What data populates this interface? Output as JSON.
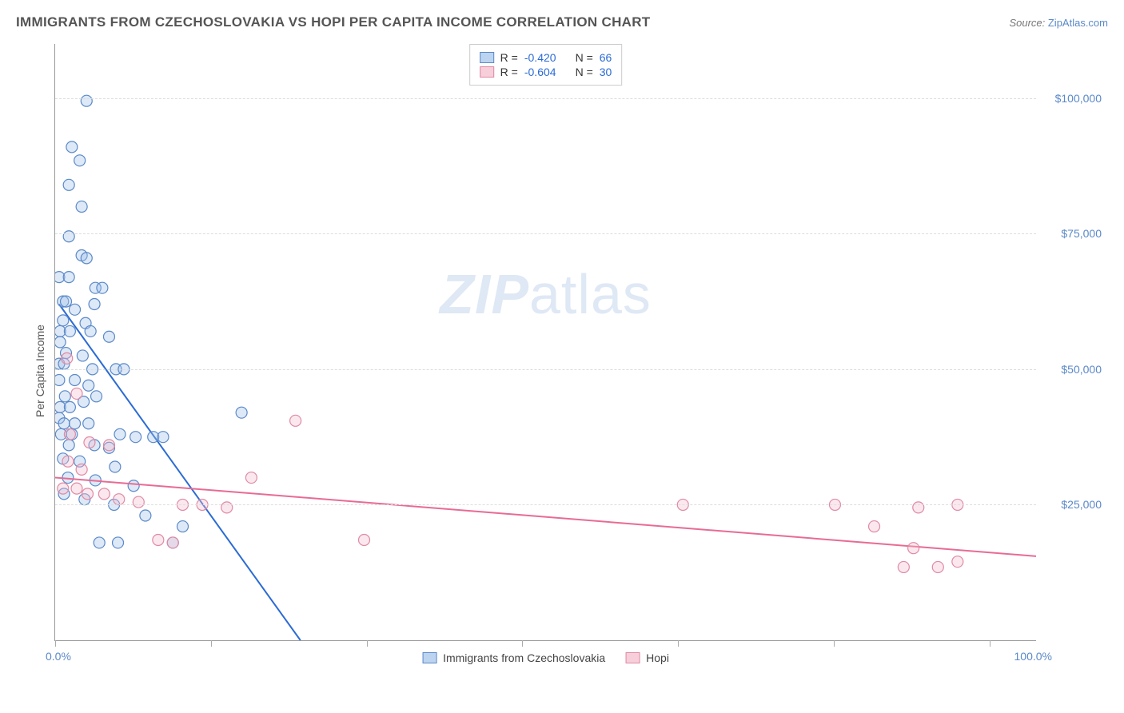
{
  "header": {
    "title": "IMMIGRANTS FROM CZECHOSLOVAKIA VS HOPI PER CAPITA INCOME CORRELATION CHART",
    "source_prefix": "Source: ",
    "source_link": "ZipAtlas.com"
  },
  "watermark": {
    "zip": "ZIP",
    "atlas": "atlas"
  },
  "chart": {
    "type": "scatter",
    "background_color": "#ffffff",
    "grid_color": "#dddddd",
    "axis_color": "#999999",
    "y_axis_title": "Per Capita Income",
    "x_min_label": "0.0%",
    "x_max_label": "100.0%",
    "xlim": [
      0,
      100
    ],
    "ylim": [
      0,
      110000
    ],
    "y_ticks": [
      {
        "value": 25000,
        "label": "$25,000"
      },
      {
        "value": 50000,
        "label": "$50,000"
      },
      {
        "value": 75000,
        "label": "$75,000"
      },
      {
        "value": 100000,
        "label": "$100,000"
      }
    ],
    "x_tick_positions_pct": [
      0,
      15.9,
      31.8,
      47.6,
      63.5,
      79.4,
      95.3
    ],
    "marker_radius": 7,
    "marker_stroke_width": 1.2,
    "marker_fill_opacity": 0.35,
    "trend_line_width": 2,
    "series": [
      {
        "name": "Immigrants from Czechoslovakia",
        "color_stroke": "#5b89c9",
        "color_fill": "#9ec0e8",
        "legend_swatch_fill": "#bcd4ef",
        "legend_swatch_border": "#5b89c9",
        "trend_line_color": "#2b6bd4",
        "R": "-0.420",
        "N": "66",
        "trend_line": {
          "x1": 0.4,
          "y1": 62000,
          "x2": 25,
          "y2": 0
        },
        "trend_extend": {
          "x1": 21,
          "y1": 10000,
          "x2": 27,
          "y2": -5000,
          "dashed": true
        },
        "points": [
          [
            3.2,
            99500
          ],
          [
            1.7,
            91000
          ],
          [
            2.5,
            88500
          ],
          [
            1.4,
            84000
          ],
          [
            2.7,
            80000
          ],
          [
            1.4,
            74500
          ],
          [
            2.7,
            71000
          ],
          [
            3.2,
            70500
          ],
          [
            0.4,
            67000
          ],
          [
            1.4,
            67000
          ],
          [
            4.1,
            65000
          ],
          [
            4.8,
            65000
          ],
          [
            0.8,
            62500
          ],
          [
            1.1,
            62500
          ],
          [
            4.0,
            62000
          ],
          [
            2.0,
            61000
          ],
          [
            0.8,
            59000
          ],
          [
            3.1,
            58500
          ],
          [
            0.5,
            57000
          ],
          [
            1.5,
            57000
          ],
          [
            3.6,
            57000
          ],
          [
            0.5,
            55000
          ],
          [
            5.5,
            56000
          ],
          [
            1.1,
            53000
          ],
          [
            2.8,
            52500
          ],
          [
            0.4,
            51000
          ],
          [
            0.9,
            51000
          ],
          [
            3.8,
            50000
          ],
          [
            6.2,
            50000
          ],
          [
            7.0,
            50000
          ],
          [
            0.4,
            48000
          ],
          [
            2.0,
            48000
          ],
          [
            3.4,
            47000
          ],
          [
            1.0,
            45000
          ],
          [
            4.2,
            45000
          ],
          [
            0.5,
            43000
          ],
          [
            1.5,
            43000
          ],
          [
            2.9,
            44000
          ],
          [
            19.0,
            42000
          ],
          [
            0.4,
            41000
          ],
          [
            0.9,
            40000
          ],
          [
            2.0,
            40000
          ],
          [
            3.4,
            40000
          ],
          [
            0.6,
            38000
          ],
          [
            1.7,
            38000
          ],
          [
            6.6,
            38000
          ],
          [
            8.2,
            37500
          ],
          [
            10.0,
            37500
          ],
          [
            11.0,
            37500
          ],
          [
            1.4,
            36000
          ],
          [
            4.0,
            36000
          ],
          [
            5.5,
            35500
          ],
          [
            0.8,
            33500
          ],
          [
            2.5,
            33000
          ],
          [
            6.1,
            32000
          ],
          [
            1.3,
            30000
          ],
          [
            4.1,
            29500
          ],
          [
            8.0,
            28500
          ],
          [
            0.9,
            27000
          ],
          [
            3.0,
            26000
          ],
          [
            6.0,
            25000
          ],
          [
            9.2,
            23000
          ],
          [
            13.0,
            21000
          ],
          [
            4.5,
            18000
          ],
          [
            6.4,
            18000
          ],
          [
            12.0,
            18000
          ]
        ]
      },
      {
        "name": "Hopi",
        "color_stroke": "#e08aa4",
        "color_fill": "#f3bccd",
        "legend_swatch_fill": "#f6cfdb",
        "legend_swatch_border": "#e08aa4",
        "trend_line_color": "#e86b93",
        "R": "-0.604",
        "N": "30",
        "trend_line": {
          "x1": 0,
          "y1": 30000,
          "x2": 100,
          "y2": 15500
        },
        "points": [
          [
            1.2,
            52000
          ],
          [
            2.2,
            45500
          ],
          [
            24.5,
            40500
          ],
          [
            1.5,
            38000
          ],
          [
            3.5,
            36500
          ],
          [
            5.5,
            36000
          ],
          [
            1.3,
            33000
          ],
          [
            2.7,
            31500
          ],
          [
            20.0,
            30000
          ],
          [
            0.8,
            28000
          ],
          [
            2.2,
            28000
          ],
          [
            3.3,
            27000
          ],
          [
            5.0,
            27000
          ],
          [
            6.5,
            26000
          ],
          [
            8.5,
            25500
          ],
          [
            13.0,
            25000
          ],
          [
            15.0,
            25000
          ],
          [
            17.5,
            24500
          ],
          [
            64.0,
            25000
          ],
          [
            79.5,
            25000
          ],
          [
            88.0,
            24500
          ],
          [
            92.0,
            25000
          ],
          [
            83.5,
            21000
          ],
          [
            87.5,
            17000
          ],
          [
            31.5,
            18500
          ],
          [
            10.5,
            18500
          ],
          [
            12.0,
            18000
          ],
          [
            92.0,
            14500
          ],
          [
            90.0,
            13500
          ],
          [
            86.5,
            13500
          ]
        ]
      }
    ],
    "legend_top": {
      "R_label": "R =",
      "N_label": "N ="
    },
    "legend_bottom_labels": [
      "Immigrants from Czechoslovakia",
      "Hopi"
    ]
  }
}
